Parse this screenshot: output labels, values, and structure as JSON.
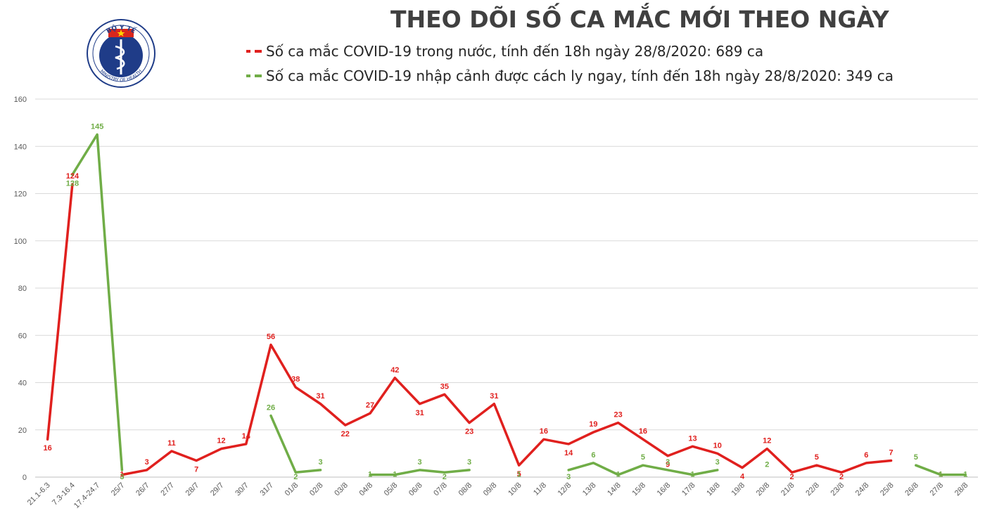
{
  "header": {
    "title": "THEO DÕI SỐ CA MẮC MỚI THEO NGÀY"
  },
  "logo": {
    "top_text": "BỘ Y TẾ",
    "bottom_text": "MINISTRY OF HEALTH"
  },
  "legend": [
    {
      "label": "Số ca mắc COVID-19 trong nước, tính đến 18h ngày 28/8/2020: 689 ca",
      "color": "#E0201E"
    },
    {
      "label": "Số ca mắc COVID-19 nhập cảnh được cách ly ngay, tính đến 18h ngày 28/8/2020: 349 ca",
      "color": "#70AD47"
    }
  ],
  "chart_data": {
    "type": "line",
    "title": "THEO DÕI SỐ CA MẮC MỚI THEO NGÀY",
    "xlabel": "",
    "ylabel": "",
    "ylim": [
      0,
      160
    ],
    "yticks": [
      0,
      20,
      40,
      60,
      80,
      100,
      120,
      140,
      160
    ],
    "grid": true,
    "legend_position": "top",
    "categories": [
      "21.1-6.3",
      "7.3-16.4",
      "17.4-24.7",
      "25/7",
      "26/7",
      "27/7",
      "28/7",
      "29/7",
      "30/7",
      "31/7",
      "01/8",
      "02/8",
      "03/8",
      "04/8",
      "05/8",
      "06/8",
      "07/8",
      "08/8",
      "09/8",
      "10/8",
      "11/8",
      "12/8",
      "13/8",
      "14/8",
      "15/8",
      "16/8",
      "17/8",
      "18/8",
      "19/8",
      "20/8",
      "21/8",
      "22/8",
      "23/8",
      "24/8",
      "25/8",
      "26/8",
      "27/8",
      "28/8"
    ],
    "series": [
      {
        "name": "Số ca mắc COVID-19 trong nước, tính đến 18h ngày 28/8/2020: 689 ca",
        "color": "#E0201E",
        "values": [
          16,
          124,
          null,
          1,
          3,
          11,
          7,
          12,
          14,
          56,
          38,
          31,
          22,
          27,
          42,
          31,
          35,
          23,
          31,
          5,
          16,
          14,
          19,
          23,
          16,
          9,
          13,
          10,
          4,
          12,
          2,
          5,
          2,
          6,
          7,
          null,
          1,
          null
        ]
      },
      {
        "name": "Số ca mắc COVID-19 nhập cảnh được cách ly ngay, tính đến 18h ngày 28/8/2020: 349 ca",
        "color": "#70AD47",
        "values": [
          null,
          128,
          145,
          3,
          null,
          null,
          null,
          null,
          null,
          26,
          2,
          3,
          null,
          1,
          1,
          3,
          2,
          3,
          null,
          1,
          null,
          3,
          6,
          1,
          5,
          3,
          1,
          3,
          null,
          2,
          null,
          null,
          null,
          null,
          null,
          5,
          1,
          1
        ]
      }
    ]
  }
}
